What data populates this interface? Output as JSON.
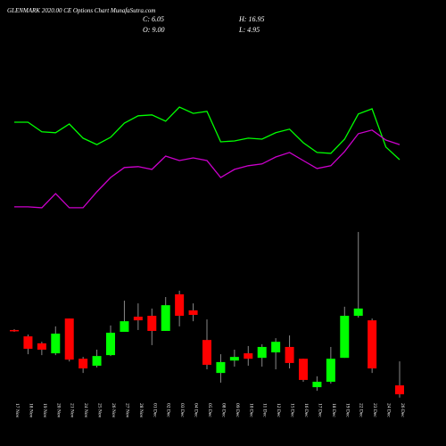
{
  "chart_data": {
    "type": "candlestick",
    "title": "GLENMARK 2020.00 CE Options Chart MunafaSutra.com",
    "summary": [
      "C: 6.05",
      "H: 16.95",
      "O: 9.00",
      "L: 4.95"
    ],
    "categories": [
      "17 Nov",
      "18 Nov",
      "19 Nov",
      "20 Nov",
      "21 Nov",
      "24 Nov",
      "25 Nov",
      "26 Nov",
      "27 Nov",
      "28 Nov",
      "01 Dec",
      "02 Dec",
      "03 Dec",
      "04 Dec",
      "05 Dec",
      "08 Dec",
      "09 Dec",
      "10 Dec",
      "11 Dec",
      "12 Dec",
      "15 Dec",
      "16 Dec",
      "17 Dec",
      "18 Dec",
      "19 Dec",
      "22 Dec",
      "23 Dec",
      "24 Dec",
      "26 Dec"
    ],
    "open": [
      27.3,
      25.2,
      22.9,
      19.6,
      31.1,
      17.8,
      15.5,
      19.0,
      26.7,
      31.7,
      32.0,
      27.0,
      39.1,
      33.8,
      24.0,
      13.1,
      17.2,
      19.6,
      18.1,
      19.9,
      21.7,
      17.8,
      8.4,
      10.2,
      18.1,
      32.0,
      30.5,
      null,
      9.0
    ],
    "high": [
      27.6,
      25.8,
      23.4,
      28.5,
      31.1,
      18.4,
      20.8,
      28.8,
      37.0,
      36.1,
      34.4,
      38.2,
      40.3,
      36.1,
      30.8,
      19.3,
      20.8,
      22.0,
      22.6,
      24.6,
      25.5,
      17.8,
      12.0,
      21.7,
      35.0,
      59.7,
      31.1,
      null,
      16.95
    ],
    "low": [
      26.7,
      19.3,
      19.0,
      19.0,
      16.9,
      13.1,
      14.9,
      18.7,
      26.7,
      27.3,
      22.3,
      27.0,
      28.5,
      30.2,
      14.3,
      9.9,
      15.2,
      15.5,
      15.2,
      14.3,
      14.6,
      10.2,
      7.2,
      9.6,
      18.1,
      31.4,
      13.1,
      null,
      4.95
    ],
    "close": [
      27.0,
      21.1,
      20.8,
      26.1,
      17.5,
      14.6,
      18.7,
      26.4,
      30.2,
      30.5,
      27.0,
      35.5,
      32.0,
      32.3,
      15.8,
      16.7,
      18.4,
      17.8,
      21.7,
      23.4,
      16.4,
      10.8,
      10.2,
      17.8,
      32.0,
      34.4,
      14.6,
      null,
      6.05
    ],
    "up_color": "#00ff00",
    "down_color": "#ff0000",
    "lines": [
      {
        "color": "#00ff00",
        "values": [
          96.0,
          96.0,
          92.8,
          92.5,
          95.4,
          90.7,
          88.6,
          91.0,
          95.7,
          98.1,
          98.4,
          96.3,
          101.0,
          98.9,
          99.6,
          89.5,
          89.8,
          90.7,
          90.4,
          92.5,
          93.7,
          89.2,
          86.0,
          85.7,
          90.4,
          98.7,
          100.4,
          87.8,
          83.6
        ]
      },
      {
        "color": "#cc00cc",
        "values": [
          68.0,
          68.0,
          67.7,
          72.4,
          67.7,
          67.7,
          73.0,
          77.7,
          81.0,
          81.3,
          80.4,
          84.8,
          83.3,
          84.2,
          83.3,
          77.7,
          80.4,
          81.6,
          82.2,
          84.5,
          86.0,
          83.3,
          80.7,
          81.6,
          86.3,
          92.2,
          93.4,
          90.1,
          88.6
        ]
      }
    ],
    "ylim": [
      3.7,
      106.9
    ]
  }
}
